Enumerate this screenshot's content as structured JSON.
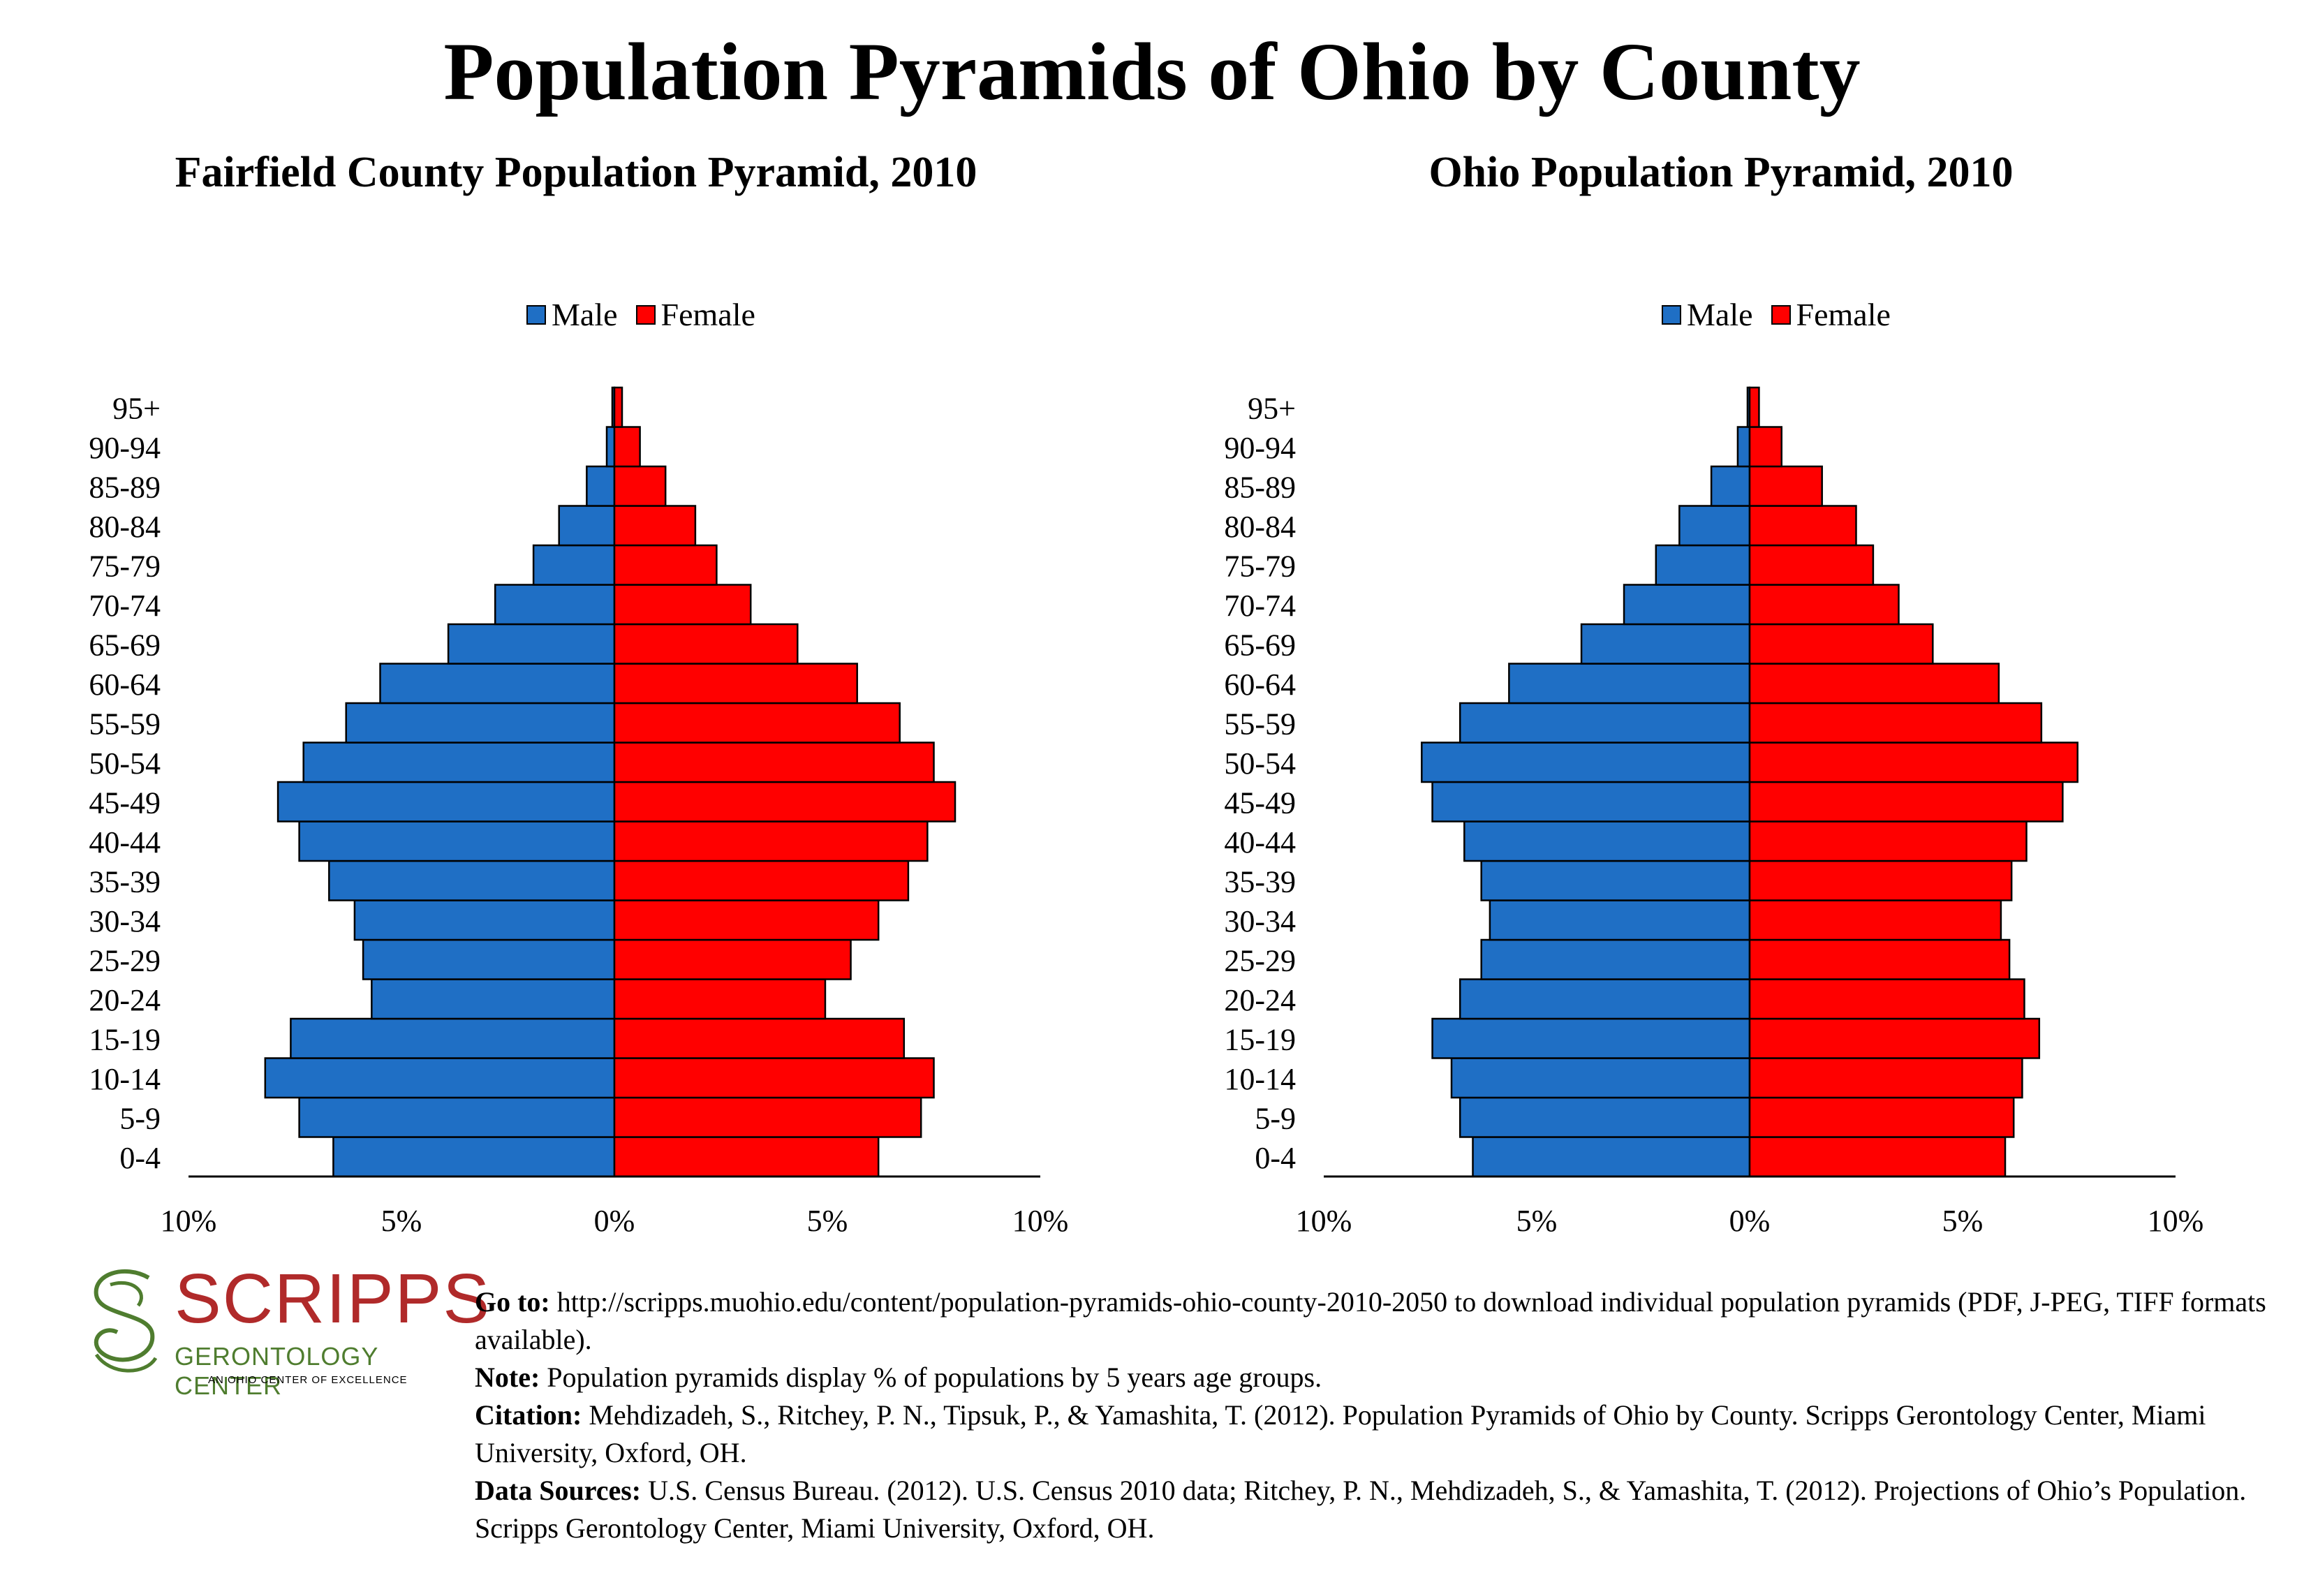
{
  "title": "Population Pyramids of Ohio by County",
  "legend": {
    "male": "Male",
    "female": "Female"
  },
  "colors": {
    "male": "#1f6fc5",
    "female": "#ff0000"
  },
  "x_tick_labels": [
    "10%",
    "5%",
    "0%",
    "5%",
    "10%"
  ],
  "chart_data": [
    {
      "type": "bar",
      "orientation": "horizontal-pyramid",
      "title": "Fairfield County Population Pyramid, 2010",
      "categories": [
        "0-4",
        "5-9",
        "10-14",
        "15-19",
        "20-24",
        "25-29",
        "30-34",
        "35-39",
        "40-44",
        "45-49",
        "50-54",
        "55-59",
        "60-64",
        "65-69",
        "70-74",
        "75-79",
        "80-84",
        "85-89",
        "90-94",
        "95+"
      ],
      "series": [
        {
          "name": "Male",
          "values": [
            6.6,
            7.4,
            8.2,
            7.6,
            5.7,
            5.9,
            6.1,
            6.7,
            7.4,
            7.9,
            7.3,
            6.3,
            5.5,
            3.9,
            2.8,
            1.9,
            1.3,
            0.65,
            0.18,
            0.05
          ]
        },
        {
          "name": "Female",
          "values": [
            6.2,
            7.2,
            7.5,
            6.8,
            4.95,
            5.55,
            6.2,
            6.9,
            7.35,
            8.0,
            7.5,
            6.7,
            5.7,
            4.3,
            3.2,
            2.4,
            1.9,
            1.2,
            0.6,
            0.18
          ]
        }
      ],
      "xlim": [
        -10,
        10
      ],
      "legend_position": "top-center",
      "grid": false
    },
    {
      "type": "bar",
      "orientation": "horizontal-pyramid",
      "title": "Ohio Population Pyramid, 2010",
      "categories": [
        "0-4",
        "5-9",
        "10-14",
        "15-19",
        "20-24",
        "25-29",
        "30-34",
        "35-39",
        "40-44",
        "45-49",
        "50-54",
        "55-59",
        "60-64",
        "65-69",
        "70-74",
        "75-79",
        "80-84",
        "85-89",
        "90-94",
        "95+"
      ],
      "series": [
        {
          "name": "Male",
          "values": [
            6.5,
            6.8,
            7.0,
            7.45,
            6.8,
            6.3,
            6.1,
            6.3,
            6.7,
            7.45,
            7.7,
            6.8,
            5.65,
            3.95,
            2.95,
            2.2,
            1.65,
            0.9,
            0.28,
            0.05
          ]
        },
        {
          "name": "Female",
          "values": [
            6.0,
            6.2,
            6.4,
            6.8,
            6.45,
            6.1,
            5.9,
            6.15,
            6.5,
            7.35,
            7.7,
            6.85,
            5.85,
            4.3,
            3.5,
            2.9,
            2.5,
            1.7,
            0.75,
            0.22
          ]
        }
      ],
      "xlim": [
        -10,
        10
      ],
      "legend_position": "top-center",
      "grid": false
    }
  ],
  "logo": {
    "word": "SCRIPPS",
    "sub": "GERONTOLOGY CENTER",
    "tag": "AN OHIO CENTER OF EXCELLENCE"
  },
  "footer": {
    "goto_label": "Go to:",
    "goto_text": "http://scripps.muohio.edu/content/population-pyramids-ohio-county-2010-2050 to download individual population pyramids (PDF, J-PEG, TIFF formats available).",
    "note_label": "Note:",
    "note_text": "Population pyramids display % of populations by 5 years age groups.",
    "citation_label": "Citation:",
    "citation_text": "Mehdizadeh, S., Ritchey, P. N., Tipsuk, P., & Yamashita, T. (2012). Population Pyramids of Ohio by County. Scripps Gerontology Center, Miami University, Oxford, OH.",
    "sources_label": "Data Sources:",
    "sources_text": "U.S. Census Bureau. (2012). U.S. Census 2010 data; Ritchey, P. N., Mehdizadeh, S., & Yamashita, T. (2012). Projections of Ohio’s Population. Scripps Gerontology Center, Miami University, Oxford, OH."
  }
}
